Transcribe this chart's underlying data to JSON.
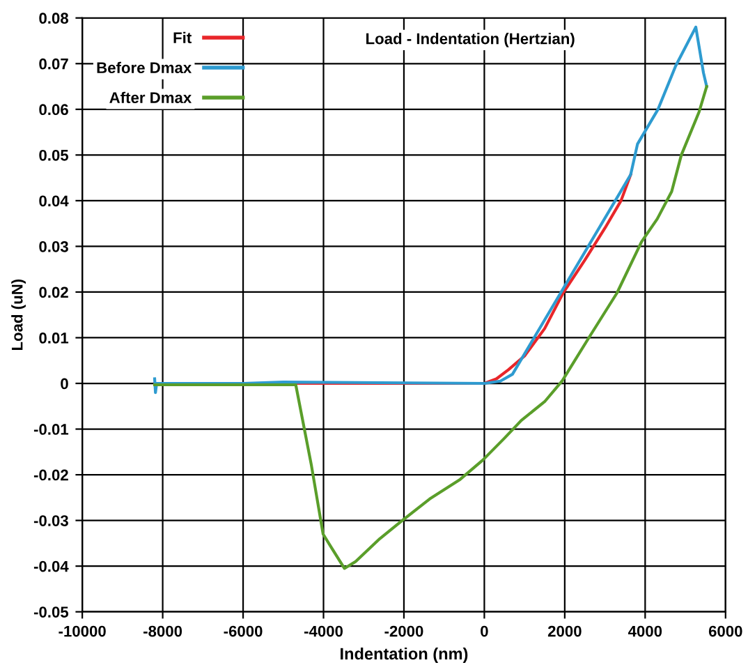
{
  "chart_data": {
    "type": "line",
    "title": "Load - Indentation (Hertzian)",
    "xlabel": "Indentation (nm)",
    "ylabel": "Load (uN)",
    "series": [
      {
        "name": "Fit",
        "color": "#e8262a",
        "x": [
          -8200,
          -4000,
          0,
          300,
          600,
          1000,
          1500,
          1960,
          2500,
          3000,
          3400,
          3640
        ],
        "values": [
          0,
          0,
          0,
          0.001,
          0.003,
          0.006,
          0.012,
          0.0198,
          0.027,
          0.034,
          0.04,
          0.0457
        ]
      },
      {
        "name": "Before Dmax",
        "color": "#2e9bd0",
        "x": [
          -8200,
          -8180,
          -8150,
          -6000,
          -5000,
          0,
          400,
          700,
          3640,
          3810,
          4320,
          4760,
          5260,
          5450,
          5530
        ],
        "values": [
          0.001,
          -0.002,
          0,
          0,
          0.0003,
          0,
          0.0005,
          0.002,
          0.0457,
          0.0524,
          0.06,
          0.0695,
          0.078,
          0.068,
          0.065
        ]
      },
      {
        "name": "After Dmax",
        "color": "#5a9e2a",
        "x": [
          -8200,
          -6000,
          -4690,
          -4300,
          -4010,
          -3800,
          -3480,
          -3200,
          -2600,
          -2040,
          -1360,
          -600,
          -40,
          500,
          920,
          1500,
          1940,
          2600,
          3300,
          3910,
          4300,
          4660,
          4900,
          5340,
          5530
        ],
        "values": [
          -0.0003,
          -0.0003,
          -0.0003,
          -0.018,
          -0.033,
          -0.036,
          -0.0405,
          -0.039,
          -0.034,
          -0.03,
          -0.0253,
          -0.021,
          -0.0168,
          -0.012,
          -0.0081,
          -0.004,
          0.0006,
          0.01,
          0.0198,
          0.031,
          0.036,
          0.042,
          0.05,
          0.0594,
          0.065
        ]
      }
    ],
    "xlim": [
      -10000,
      6000
    ],
    "xticks": [
      -10000,
      -8000,
      -6000,
      -4000,
      -2000,
      0,
      2000,
      4000,
      6000
    ],
    "ylim": [
      -0.05,
      0.08
    ],
    "yticks": [
      -0.05,
      -0.04,
      -0.03,
      -0.02,
      -0.01,
      0,
      0.01,
      0.02,
      0.03,
      0.04,
      0.05,
      0.06,
      0.07,
      0.08
    ],
    "grid": true,
    "legend": "top left"
  }
}
